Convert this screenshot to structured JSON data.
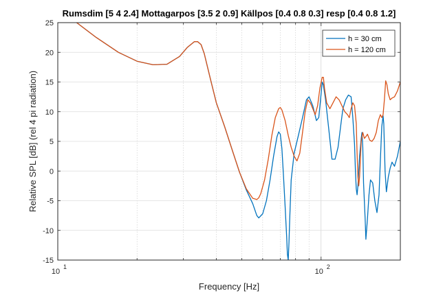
{
  "chart_data": {
    "type": "line",
    "title": "Rumsdim [5 4 2.4] Mottagarpos [3.5 2 0.9] Källpos [0.4 0.8 0.3] resp [0.4 0.8 1.2]",
    "xlabel": "Frequency [Hz]",
    "ylabel": "Relative SPL [dB] (rel 4 pi radiation)",
    "xscale": "log",
    "xlim": [
      10,
      200
    ],
    "ylim": [
      -15,
      25
    ],
    "yticks": [
      25,
      20,
      15,
      10,
      5,
      0,
      -5,
      -10,
      -15
    ],
    "ytick_labels": [
      "25",
      "20",
      "15",
      "10",
      "5",
      "0",
      "-5",
      "-10",
      "-15"
    ],
    "xtick_labels": [
      {
        "base": "10",
        "exp": "1",
        "value": 10
      },
      {
        "base": "10",
        "exp": "2",
        "value": 100
      }
    ],
    "grid": true,
    "legend_position": "top-right",
    "series": [
      {
        "name": "h = 30 cm",
        "color": "#0072BD",
        "x": [
          11.8,
          14,
          17,
          20,
          23,
          26,
          29,
          31,
          33,
          34,
          35,
          36,
          38,
          40,
          43,
          46,
          49,
          52,
          55,
          57,
          58,
          60,
          62,
          64,
          66,
          68,
          69,
          70,
          71,
          72,
          73,
          74,
          74.5,
          75,
          75.5,
          76,
          77,
          79,
          82,
          85,
          88,
          90,
          93,
          96,
          98,
          100,
          101,
          102,
          104,
          107,
          110,
          113,
          116,
          119,
          121,
          124,
          127,
          130,
          132,
          134,
          135,
          136,
          137,
          138,
          139,
          140,
          142,
          143,
          144,
          145,
          147,
          148,
          150,
          152,
          154,
          157,
          160,
          163,
          166,
          168,
          170,
          172,
          173,
          175,
          177,
          180,
          183,
          186,
          190,
          195,
          200
        ],
        "y": [
          25,
          22.5,
          20,
          18.5,
          17.9,
          18,
          19.3,
          20.8,
          21.8,
          21.8,
          21.3,
          19.8,
          15.5,
          11.5,
          7.5,
          3.5,
          -0.2,
          -3.2,
          -5.5,
          -7.5,
          -7.9,
          -7.2,
          -5,
          -1.5,
          2.5,
          5.8,
          6.6,
          6.2,
          3.8,
          -1,
          -6,
          -11,
          -14,
          -15,
          -12,
          -8,
          -1.5,
          3,
          6,
          9,
          12,
          12.5,
          11,
          8.5,
          9,
          13,
          15,
          14.5,
          12,
          7,
          2,
          2,
          4,
          8,
          10.5,
          12,
          12.8,
          12.5,
          9,
          4.5,
          0,
          -3,
          -4,
          -2.5,
          0,
          2.5,
          5.5,
          6.5,
          4,
          -2,
          -8,
          -11.5,
          -8,
          -4,
          -1.5,
          -2,
          -5,
          -7,
          -4,
          2,
          7.5,
          9.3,
          8,
          0,
          -3.5,
          -1,
          0.5,
          1.5,
          0.8,
          2.5,
          5
        ]
      },
      {
        "name": "h = 120 cm",
        "color": "#D95319",
        "x": [
          11.8,
          14,
          17,
          20,
          23,
          26,
          29,
          31,
          33,
          34,
          35,
          36,
          38,
          40,
          43,
          46,
          49,
          52,
          55,
          57,
          58,
          59,
          61,
          63,
          65,
          67,
          69,
          70,
          71,
          73,
          75,
          77,
          79,
          81,
          83,
          85,
          87,
          89,
          91,
          93,
          95,
          97,
          99,
          101,
          102,
          103,
          105,
          108,
          111,
          114,
          117,
          120,
          123,
          126,
          128,
          130,
          132,
          134,
          136,
          137,
          138,
          139,
          140,
          141,
          142,
          144,
          146,
          148,
          150,
          153,
          156,
          159,
          162,
          165,
          168,
          170,
          172,
          174,
          176,
          178,
          180,
          183,
          186,
          190,
          195,
          200
        ],
        "y": [
          25,
          22.5,
          20,
          18.5,
          17.9,
          18,
          19.3,
          20.8,
          21.8,
          21.8,
          21.3,
          19.8,
          15.5,
          11.5,
          7.5,
          3.5,
          -0.2,
          -3,
          -4.6,
          -4.8,
          -4.5,
          -3.8,
          -1.5,
          2,
          6,
          9,
          10.5,
          10.7,
          10.3,
          8.5,
          6,
          4,
          2.5,
          1.7,
          3,
          6.5,
          10,
          12,
          11.5,
          10.5,
          9.5,
          11,
          14,
          15.8,
          15.8,
          14,
          11.5,
          10.5,
          11.5,
          12.5,
          12,
          11,
          10,
          9.5,
          9,
          10.5,
          11.5,
          11,
          8,
          3,
          -1,
          -2.5,
          -1,
          2,
          5,
          6.5,
          5.5,
          5.8,
          6.2,
          5.2,
          5,
          5.5,
          6.5,
          8.5,
          9.5,
          9,
          9.5,
          12,
          15.2,
          14.5,
          13,
          12,
          12.3,
          12.5,
          13.5,
          15
        ]
      }
    ]
  }
}
